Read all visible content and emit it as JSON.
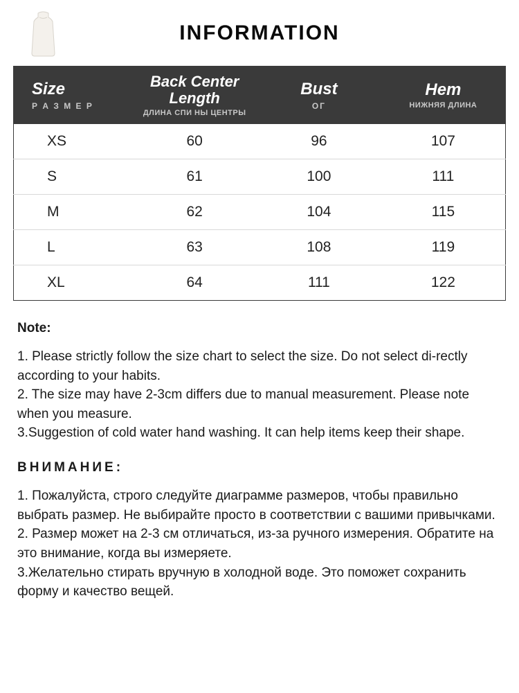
{
  "title": "INFORMATION",
  "colors": {
    "header_bg": "#3a3a3a",
    "header_text": "#ffffff",
    "header_sub": "#c8c8c8",
    "row_border": "#d8d8d8",
    "body_text": "#222222",
    "page_bg": "#ffffff"
  },
  "columns": [
    {
      "en": "Size",
      "ru": "Р А З М Е Р"
    },
    {
      "en": "Back Center Length",
      "ru": "ДЛИНА СПИ НЫ ЦЕНТРЫ"
    },
    {
      "en": "Bust",
      "ru": "ОГ"
    },
    {
      "en": "Hem",
      "ru": "НИЖНЯЯ ДЛИНА"
    }
  ],
  "rows": [
    {
      "size": "XS",
      "bcl": "60",
      "bust": "96",
      "hem": "107"
    },
    {
      "size": "S",
      "bcl": "61",
      "bust": "100",
      "hem": "111"
    },
    {
      "size": "M",
      "bcl": "62",
      "bust": "104",
      "hem": "115"
    },
    {
      "size": "L",
      "bcl": "63",
      "bust": "108",
      "hem": "119"
    },
    {
      "size": "XL",
      "bcl": "64",
      "bust": "111",
      "hem": "122"
    }
  ],
  "note_en": {
    "head": "Note:",
    "body": "1. Please strictly follow the size chart  to select the size. Do not select di-rectly according to your habits.\n2. The size may have 2-3cm differs due to manual measurement. Please note when you measure.\n3.Suggestion of cold water hand washing. It can help items keep their shape."
  },
  "note_ru": {
    "head": "ВНИМАНИЕ:",
    "body": "1. Пожалуйста, строго следуйте диаграмме размеров, чтобы правильно выбрать размер. Не выбирайте просто в соответствии с вашими привычками.\n2. Размер может на 2-3 см отличаться, из-за ручного измерения. Обратите на это внимание, когда вы измеряете.\n3.Желательно стирать вручную в холодной воде. Это поможет сохранить форму и качество вещей."
  }
}
